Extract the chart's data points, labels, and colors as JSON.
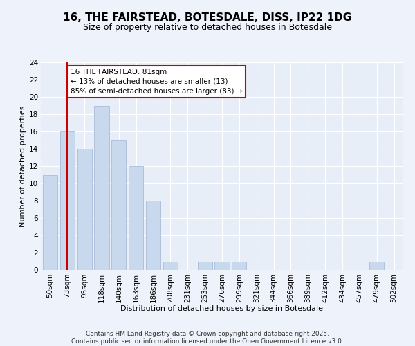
{
  "title": "16, THE FAIRSTEAD, BOTESDALE, DISS, IP22 1DG",
  "subtitle": "Size of property relative to detached houses in Botesdale",
  "xlabel": "Distribution of detached houses by size in Botesdale",
  "ylabel": "Number of detached properties",
  "categories": [
    "50sqm",
    "73sqm",
    "95sqm",
    "118sqm",
    "140sqm",
    "163sqm",
    "186sqm",
    "208sqm",
    "231sqm",
    "253sqm",
    "276sqm",
    "299sqm",
    "321sqm",
    "344sqm",
    "366sqm",
    "389sqm",
    "412sqm",
    "434sqm",
    "457sqm",
    "479sqm",
    "502sqm"
  ],
  "values": [
    11,
    16,
    14,
    19,
    15,
    12,
    8,
    1,
    0,
    1,
    1,
    1,
    0,
    0,
    0,
    0,
    0,
    0,
    0,
    1,
    0
  ],
  "bar_color": "#c8d9ee",
  "bar_edge_color": "#aabdd8",
  "red_line_x": 1,
  "annotation_text": "16 THE FAIRSTEAD: 81sqm\n← 13% of detached houses are smaller (13)\n85% of semi-detached houses are larger (83) →",
  "annotation_box_color": "#ffffff",
  "annotation_box_edge_color": "#cc0000",
  "red_line_color": "#cc0000",
  "ylim": [
    0,
    24
  ],
  "yticks": [
    0,
    2,
    4,
    6,
    8,
    10,
    12,
    14,
    16,
    18,
    20,
    22,
    24
  ],
  "bg_color": "#e8eef8",
  "fig_bg_color": "#eef2fa",
  "grid_color": "#ffffff",
  "footer": "Contains HM Land Registry data © Crown copyright and database right 2025.\nContains public sector information licensed under the Open Government Licence v3.0.",
  "title_fontsize": 11,
  "subtitle_fontsize": 9,
  "xlabel_fontsize": 8,
  "ylabel_fontsize": 8,
  "tick_fontsize": 7.5,
  "annotation_fontsize": 7.5,
  "footer_fontsize": 6.5
}
